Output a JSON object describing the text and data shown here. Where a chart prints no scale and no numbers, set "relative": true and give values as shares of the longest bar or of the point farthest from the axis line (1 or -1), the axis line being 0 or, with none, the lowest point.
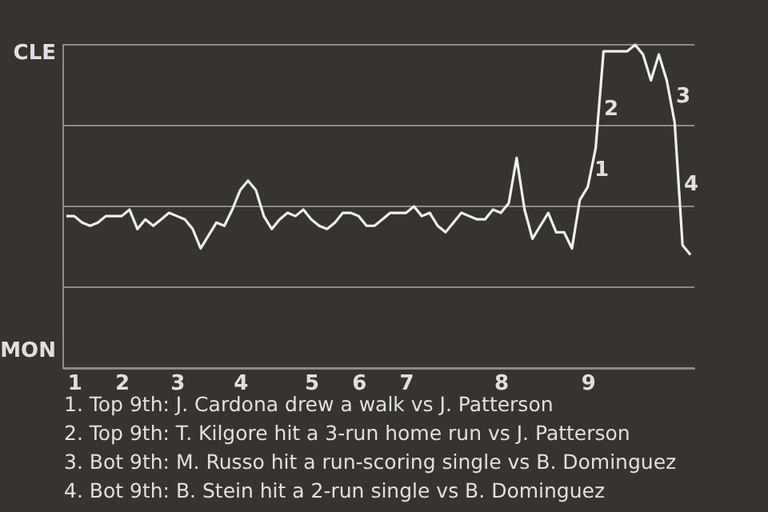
{
  "chart_data": {
    "type": "line",
    "relative": true,
    "categories": [
      null,
      "1",
      null,
      null,
      null,
      null,
      null,
      "2",
      null,
      null,
      null,
      null,
      null,
      null,
      "3",
      null,
      null,
      null,
      null,
      null,
      null,
      null,
      "4",
      null,
      null,
      null,
      null,
      null,
      null,
      null,
      null,
      "5",
      null,
      null,
      null,
      null,
      null,
      "6",
      null,
      null,
      null,
      null,
      null,
      "7",
      null,
      null,
      null,
      null,
      null,
      null,
      null,
      null,
      null,
      null,
      null,
      "8",
      null,
      null,
      null,
      null,
      null,
      null,
      null,
      null,
      null,
      null,
      "9",
      null,
      null,
      null,
      null,
      null,
      null,
      null,
      null,
      null,
      null,
      null,
      null,
      null
    ],
    "series": [
      {
        "color": "#f0f0f0",
        "values": [
          0.47,
          0.47,
          0.45,
          0.44,
          0.45,
          0.47,
          0.47,
          0.47,
          0.49,
          0.43,
          0.46,
          0.44,
          0.46,
          0.48,
          0.47,
          0.46,
          0.43,
          0.37,
          0.41,
          0.45,
          0.44,
          0.49,
          0.55,
          0.58,
          0.55,
          0.47,
          0.43,
          0.46,
          0.48,
          0.47,
          0.49,
          0.46,
          0.44,
          0.43,
          0.45,
          0.48,
          0.48,
          0.47,
          0.44,
          0.44,
          0.46,
          0.48,
          0.48,
          0.48,
          0.5,
          0.47,
          0.48,
          0.44,
          0.42,
          0.45,
          0.48,
          0.47,
          0.46,
          0.46,
          0.49,
          0.48,
          0.51,
          0.65,
          0.49,
          0.4,
          0.44,
          0.48,
          0.42,
          0.42,
          0.37,
          0.52,
          0.56,
          0.68,
          0.98,
          0.98,
          0.98,
          0.98,
          1,
          0.97,
          0.89,
          0.97,
          0.89,
          0.76,
          0.38,
          0.35
        ]
      }
    ],
    "grid": "y",
    "line_style": "solid",
    "annotations": [
      "CLE",
      "MON",
      "1",
      "2",
      "3",
      "4",
      "1. Top 9th: J. Cardona drew a walk vs J. Patterson",
      "2. Top 9th: T. Kilgore hit a 3-run home run vs J. Patterson",
      "3. Bot 9th: M. Russo hit a run-scoring single vs B. Dominguez",
      "4. Bot 9th: B. Stein hit a 2-run single vs B. Dominguez"
    ]
  }
}
